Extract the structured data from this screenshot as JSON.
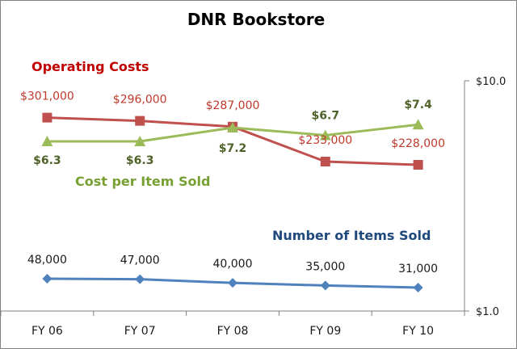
{
  "colors": {
    "operating_costs": "#c0504d",
    "cost_per_item": "#9bbb59",
    "items_sold": "#4f81bd",
    "operating_costs_title": "#c00000",
    "cost_per_item_title": "#77a033",
    "items_sold_title": "#1f497d",
    "axis": "#808080"
  },
  "chart_data": {
    "type": "line",
    "title": "DNR Bookstore",
    "categories": [
      "FY 06",
      "FY 07",
      "FY 08",
      "FY 09",
      "FY 10"
    ],
    "secondary_axis": {
      "scale": "log",
      "range": [
        1.0,
        10.0
      ],
      "tick_labels": [
        "$10.0",
        "$1.0"
      ],
      "position": "right"
    },
    "series": [
      {
        "key": "operating_costs",
        "name": "Operating Costs",
        "marker": "square",
        "values": [
          301000,
          296000,
          287000,
          233000,
          228000
        ],
        "labels": [
          "$301,000",
          "$296,000",
          "$287,000",
          "$233,000",
          "$228,000"
        ]
      },
      {
        "key": "cost_per_item",
        "name": "Cost per Item Sold",
        "marker": "triangle",
        "axis": "secondary",
        "values": [
          6.3,
          6.3,
          7.2,
          6.7,
          7.4
        ],
        "labels": [
          "$6.3",
          "$6.3",
          "$7.2",
          "$6.7",
          "$7.4"
        ]
      },
      {
        "key": "items_sold",
        "name": "Number of Items Sold",
        "marker": "diamond",
        "values": [
          48000,
          47000,
          40000,
          35000,
          31000
        ],
        "labels": [
          "48,000",
          "47,000",
          "40,000",
          "35,000",
          "31,000"
        ]
      }
    ],
    "legend": "labels placed next to series",
    "grid": false
  }
}
